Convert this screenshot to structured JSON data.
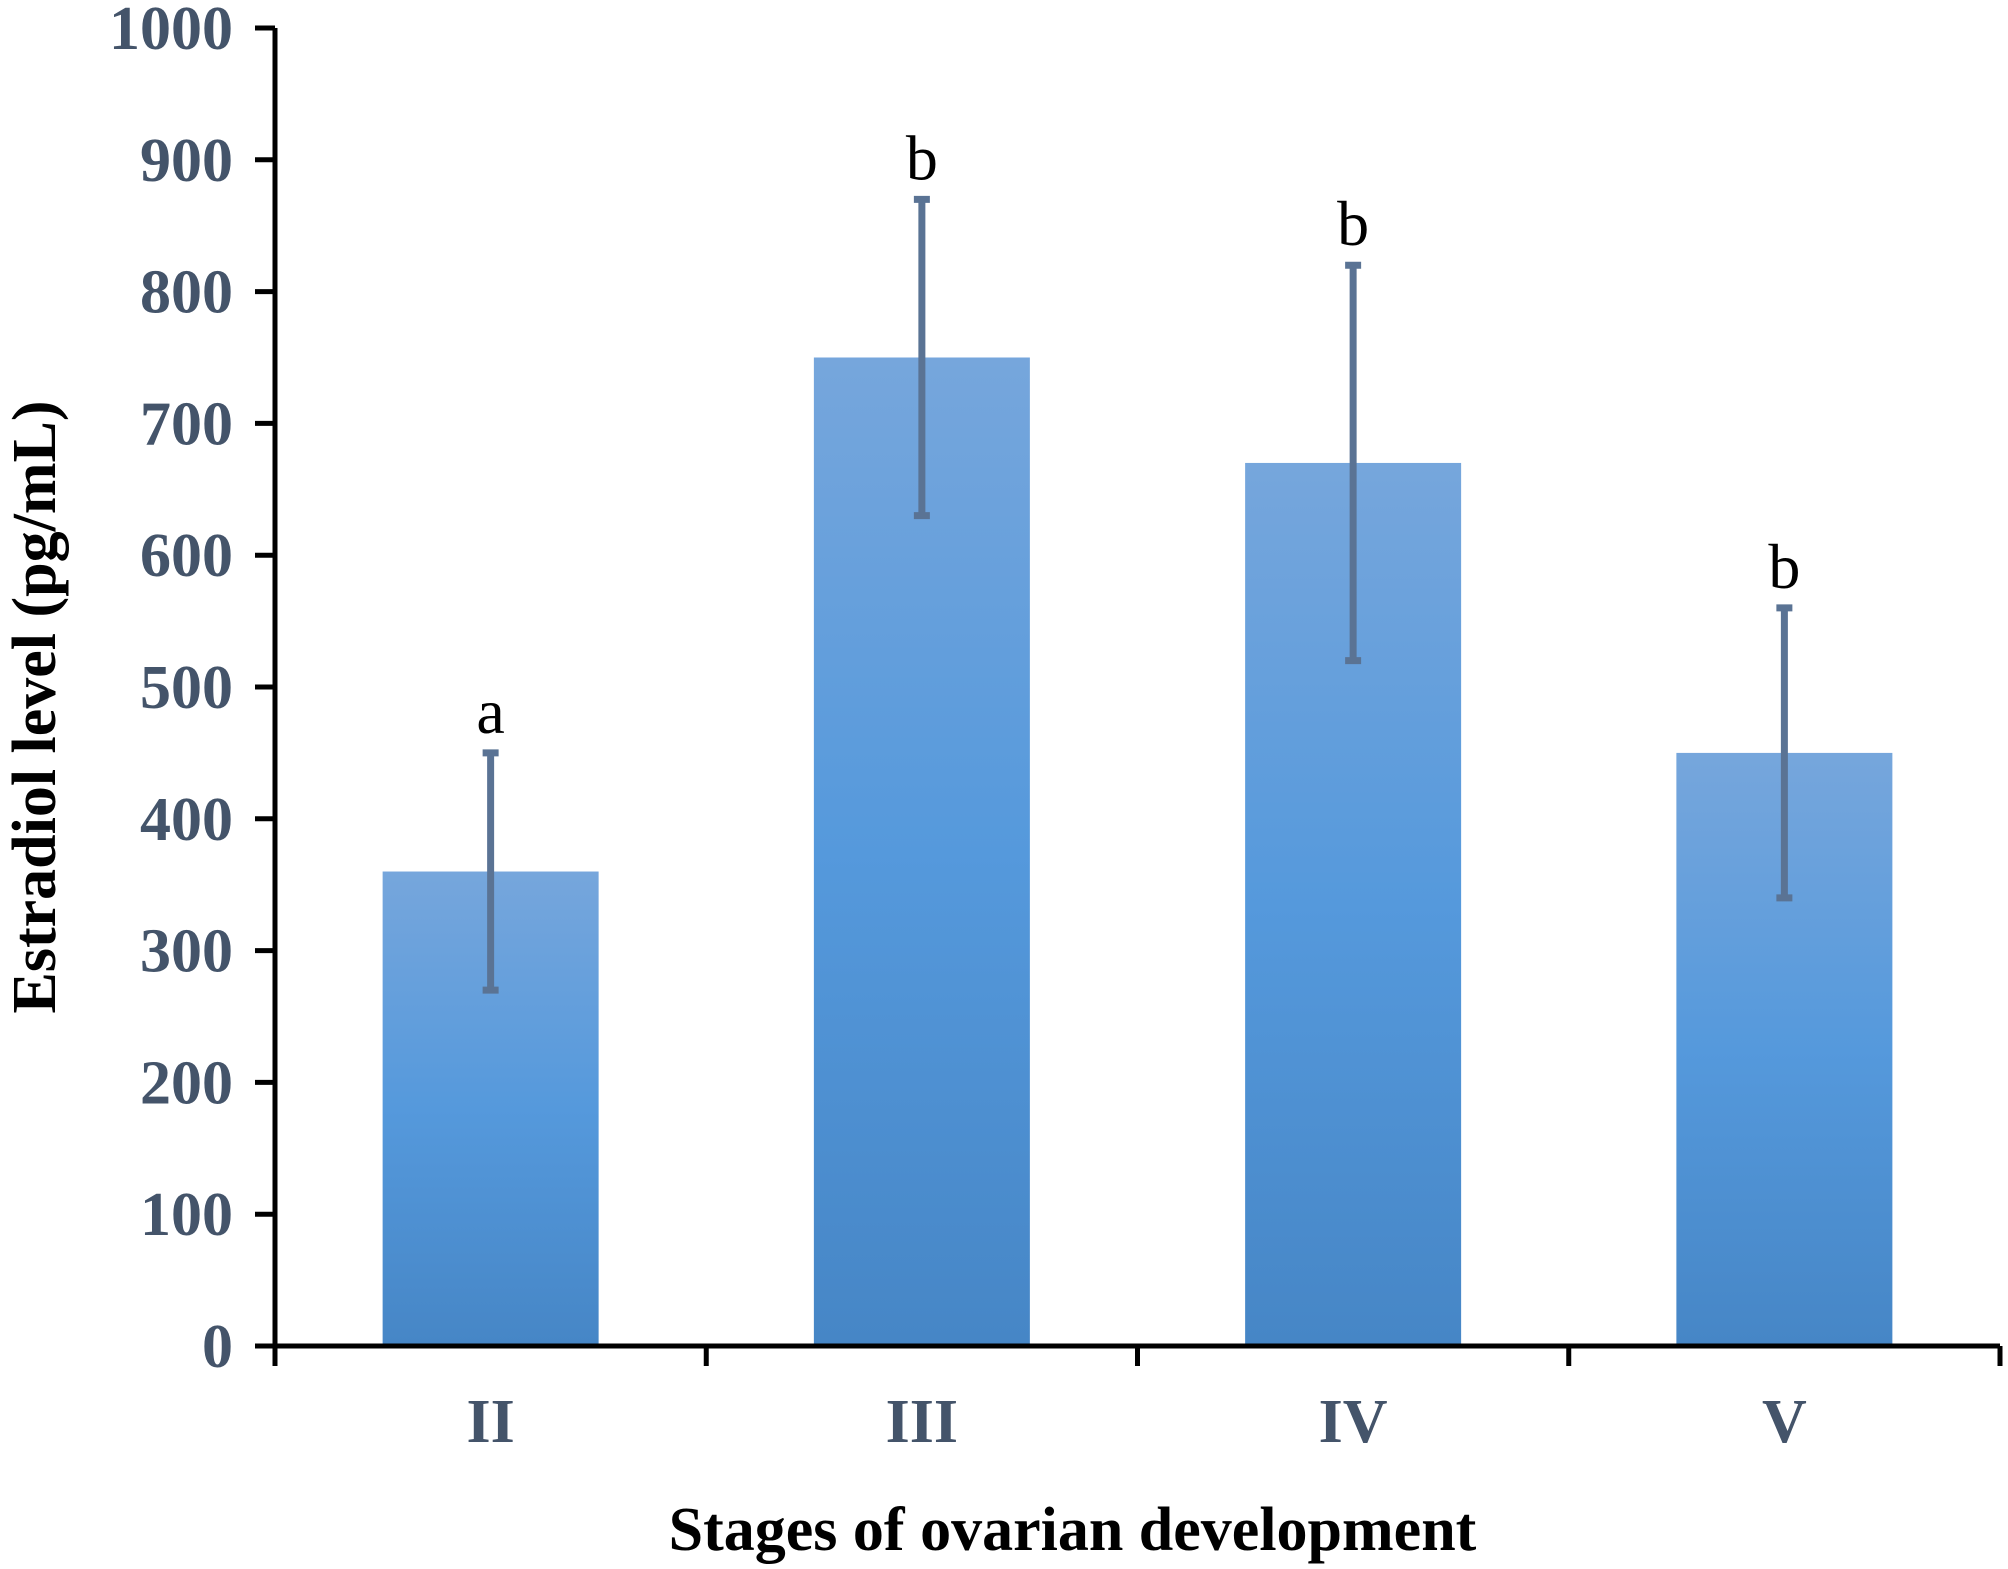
{
  "chart_data": {
    "type": "bar",
    "title": "",
    "xlabel": "Stages of ovarian development",
    "ylabel": "Estradiol level (pg/mL)",
    "ylim": [
      0,
      1000
    ],
    "yticks": [
      0,
      100,
      200,
      300,
      400,
      500,
      600,
      700,
      800,
      900,
      1000
    ],
    "ytick_labels": [
      "0",
      "100",
      "200",
      "300",
      "400",
      "500",
      "600",
      "700",
      "800",
      "900",
      "1000"
    ],
    "categories": [
      "II",
      "III",
      "IV",
      "V"
    ],
    "values": [
      360,
      750,
      670,
      450
    ],
    "errors": [
      90,
      120,
      150,
      110
    ],
    "significance": [
      "a",
      "b",
      "b",
      "b"
    ],
    "grid": false,
    "legend": null
  },
  "colors": {
    "bar_top": "#76a6dc",
    "bar_mid": "#5599dc",
    "bar_bottom": "#4686c6",
    "error_bar": "#5a7394",
    "tick_text": "#44546a",
    "axis": "#000000"
  }
}
